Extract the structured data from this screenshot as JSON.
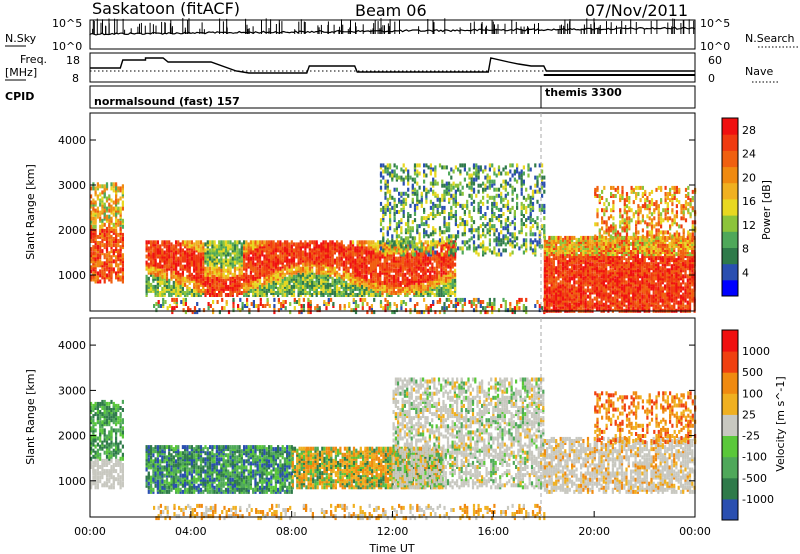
{
  "header": {
    "title": "Saskatoon (fitACF)",
    "beam": "Beam 06",
    "date": "07/Nov/2011"
  },
  "top_panels": {
    "nsky_label": "N.Sky",
    "nsearch_label": "N.Search",
    "nsky_ticks": [
      "10^5",
      "10^0"
    ],
    "nsearch_ticks": [
      "10^5",
      "10^0"
    ],
    "freq_label_1": "Freq.",
    "freq_label_2": "[MHz]",
    "freq_ticks": [
      "18",
      "8"
    ],
    "nave_label": "Nave",
    "nave_ticks": [
      "60",
      "0"
    ],
    "cpid_label": "CPID",
    "cpid_modes": [
      {
        "name": "normalsound (fast) 157",
        "start_hour": 0
      },
      {
        "name": "themis 3300",
        "start_hour": 18
      }
    ]
  },
  "chart_data": [
    {
      "type": "heatmap",
      "name": "Power",
      "xlabel": "",
      "ylabel": "Slant Range [km]",
      "xlim": [
        0,
        24
      ],
      "ylim": [
        200,
        4600
      ],
      "y_ticks": [
        "1000",
        "2000",
        "3000",
        "4000"
      ],
      "colorbar_label": "Power [dB]",
      "colorbar_ticks": [
        "4",
        "8",
        "12",
        "16",
        "20",
        "24",
        "28"
      ],
      "colorbar_colors": [
        "#0000ff",
        "#2a4fb0",
        "#2f7a4a",
        "#4fa85a",
        "#8cc43a",
        "#e8d820",
        "#f0b020",
        "#f08a10",
        "#f06010",
        "#f03a10",
        "#f01010"
      ]
    },
    {
      "type": "heatmap",
      "name": "Velocity",
      "xlabel": "Time UT",
      "ylabel": "Slant Range [km]",
      "xlim": [
        0,
        24
      ],
      "ylim": [
        200,
        4600
      ],
      "x_ticks": [
        "00:00",
        "04:00",
        "08:00",
        "12:00",
        "16:00",
        "20:00",
        "00:00"
      ],
      "y_ticks": [
        "1000",
        "2000",
        "3000",
        "4000"
      ],
      "colorbar_label": "Velocity [m s^-1]",
      "colorbar_ticks": [
        "1000",
        "500",
        "100",
        "25",
        "-25",
        "-100",
        "-500",
        "-1000"
      ],
      "colorbar_colors": [
        "#2a4fb0",
        "#2f7a4a",
        "#4fa85a",
        "#5ac83a",
        "#c8c8c0",
        "#f0b020",
        "#f08a10",
        "#f04010",
        "#f01010"
      ]
    }
  ]
}
